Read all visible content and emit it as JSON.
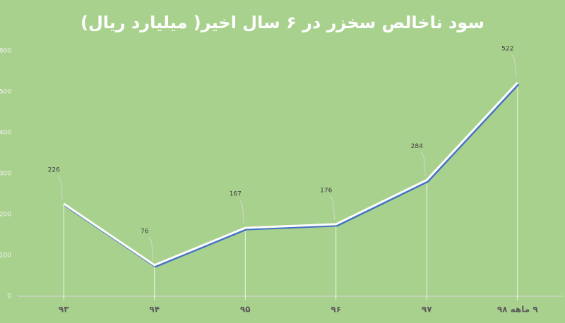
{
  "chart_data": {
    "type": "line",
    "title": "سود ناخالص سخزر در ۶ سال اخیر( میلیارد ریال)",
    "categories": [
      "۹۳",
      "۹۴",
      "۹۵",
      "۹۶",
      "۹۷",
      "۹ ماهه ۹۸"
    ],
    "values": [
      226,
      76,
      167,
      176,
      284,
      522
    ],
    "color": "#ffffff",
    "ylim": [
      0,
      600
    ],
    "yticks": [
      0,
      100,
      200,
      300,
      400,
      500,
      600
    ],
    "grid": false
  }
}
